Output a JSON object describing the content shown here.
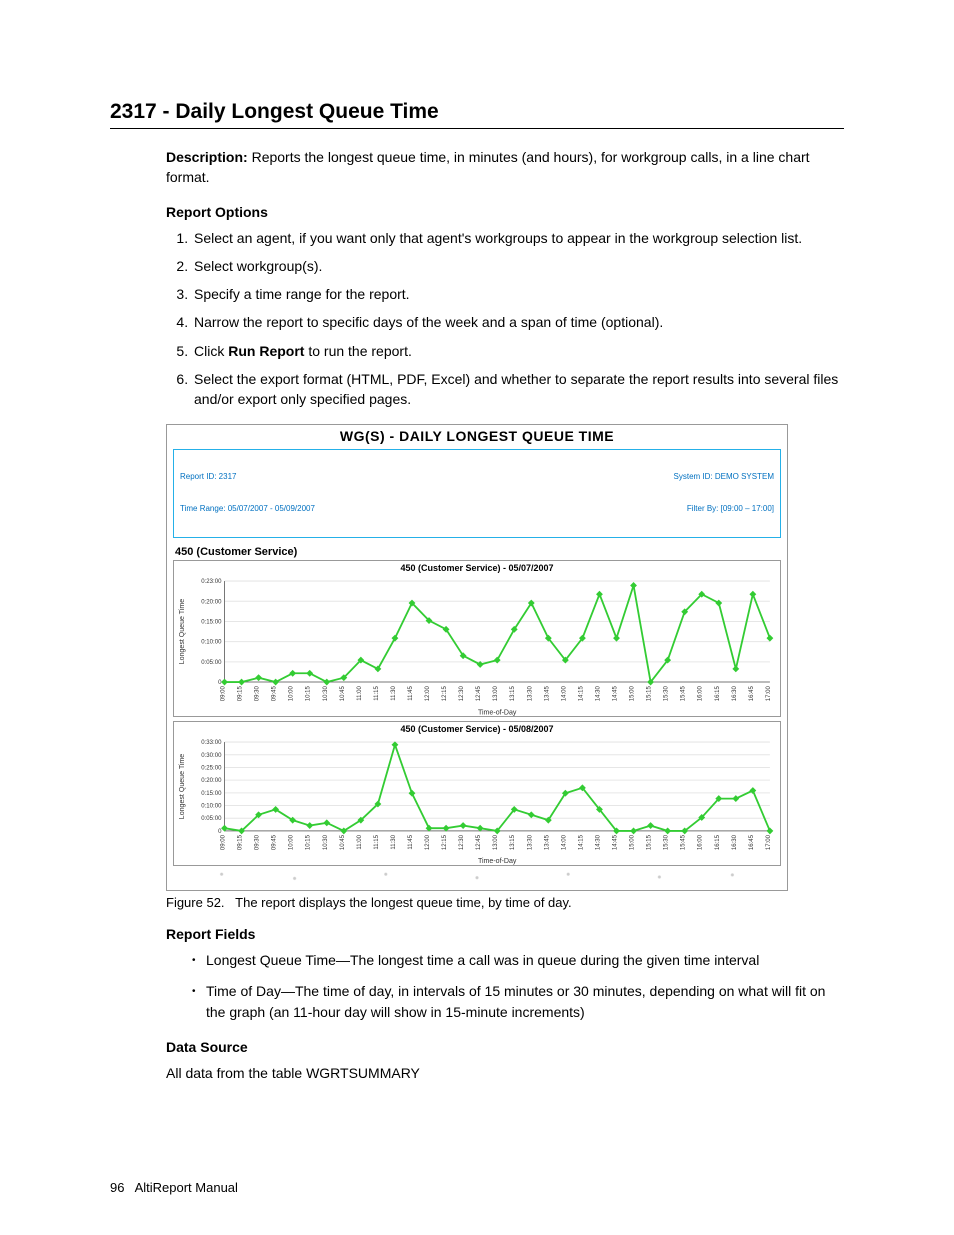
{
  "heading": "2317 - Daily Longest Queue Time",
  "description_label": "Description:",
  "description_text": "Reports the longest queue time, in minutes (and hours), for workgroup calls, in a line chart format.",
  "report_options_heading": "Report Options",
  "options": [
    "Select an agent, if you want only that agent's workgroups to appear in the workgroup selection list.",
    "Select workgroup(s).",
    "Specify a time range for the report.",
    "Narrow the report to specific days of the week and a span of time (optional).",
    "Click <b>Run Report</b> to run the report.",
    "Select the export format (HTML, PDF, Excel) and whether to separate the report results into several files and/or export only specified pages."
  ],
  "report": {
    "panel_title": "WG(S) - DAILY LONGEST QUEUE TIME",
    "meta_left_1": "Report ID: 2317",
    "meta_left_2": "Time Range: 05/07/2007 - 05/09/2007",
    "meta_right_1": "System ID: DEMO SYSTEM",
    "meta_right_2": "Filter By: [09:00 – 17:00]",
    "group_label": "450 (Customer Service)",
    "line_color": "#33cc33",
    "marker_color": "#33cc33",
    "grid_color": "#e6e6e6",
    "axis_color": "#777777",
    "axis_label_y": "Longest Queue Time",
    "axis_label_x": "Time-of-Day",
    "x_labels": [
      "09:00",
      "09:15",
      "09:30",
      "09:45",
      "10:00",
      "10:15",
      "10:30",
      "10:45",
      "11:00",
      "11:15",
      "11:30",
      "11:45",
      "12:00",
      "12:15",
      "12:30",
      "12:45",
      "13:00",
      "13:15",
      "13:30",
      "13:45",
      "14:00",
      "14:15",
      "14:30",
      "14:45",
      "15:00",
      "15:15",
      "15:30",
      "15:45",
      "16:00",
      "16:15",
      "16:30",
      "16:45",
      "17:00"
    ],
    "charts": [
      {
        "title": "450 (Customer Service) - 05/07/2007",
        "y_ticks": [
          "0",
          "0:05:00",
          "0:10:00",
          "0:15:00",
          "0:20:00",
          "0:23:00"
        ],
        "y_max": 23,
        "values": [
          0,
          0,
          1,
          0,
          2,
          2,
          0,
          1,
          5,
          3,
          10,
          18,
          14,
          12,
          6,
          4,
          5,
          12,
          18,
          10,
          5,
          10,
          20,
          10,
          22,
          0,
          5,
          16,
          20,
          18,
          3,
          20,
          10
        ],
        "height": 100
      },
      {
        "title": "450 (Customer Service) - 05/08/2007",
        "y_ticks": [
          "0",
          "0:05:00",
          "0:10:00",
          "0:15:00",
          "0:20:00",
          "0:25:00",
          "0:30:00",
          "0:33:00"
        ],
        "y_max": 33,
        "values": [
          1,
          0,
          6,
          8,
          4,
          2,
          3,
          0,
          4,
          10,
          32,
          14,
          1,
          1,
          2,
          1,
          0,
          8,
          6,
          4,
          14,
          16,
          8,
          0,
          0,
          2,
          0,
          0,
          5,
          12,
          12,
          15,
          0
        ],
        "height": 88
      }
    ]
  },
  "figure_caption_label": "Figure 52.",
  "figure_caption_text": "The report displays the longest queue time, by time of day.",
  "report_fields_heading": "Report Fields",
  "fields": [
    {
      "name": "Longest Queue Time",
      "desc": "—The longest time a call was in queue during the given time interval"
    },
    {
      "name": "Time of Day",
      "desc": "—The time of day, in intervals of 15 minutes or 30 minutes, depending on what will fit on the graph (an 11-hour day will show in 15-minute increments)"
    }
  ],
  "data_source_heading": "Data Source",
  "data_source_text": "All data from the table WGRTSUMMARY",
  "footer_page": "96",
  "footer_text": "AltiReport Manual"
}
